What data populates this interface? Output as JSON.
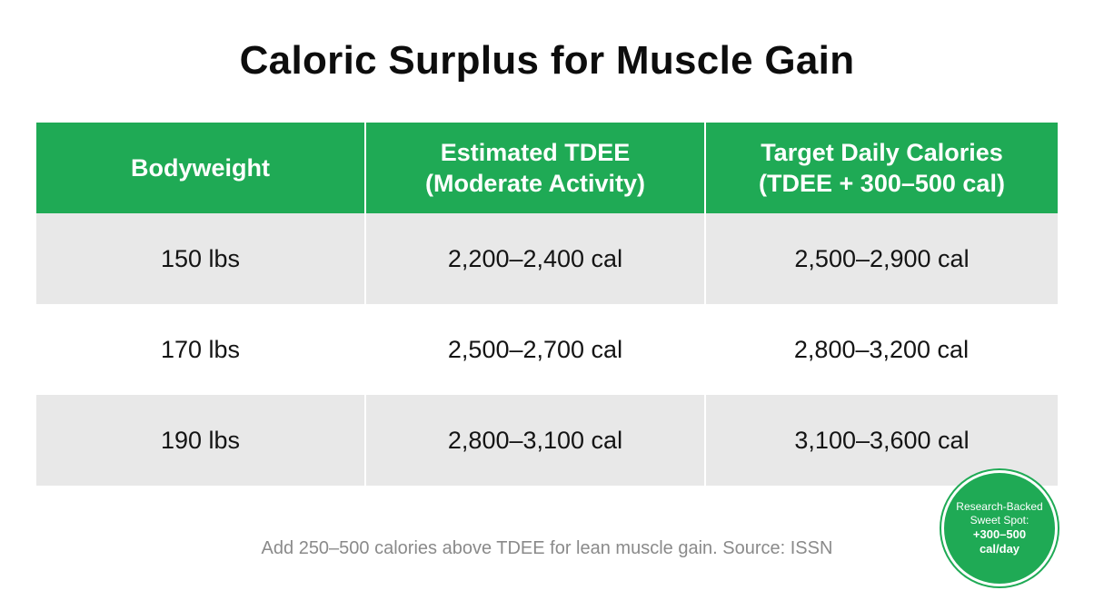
{
  "title": "Caloric Surplus for Muscle Gain",
  "table": {
    "headers": [
      {
        "line1": "Bodyweight",
        "line2": ""
      },
      {
        "line1": "Estimated TDEE",
        "line2": "(Moderate Activity)"
      },
      {
        "line1": "Target Daily Calories",
        "line2": "(TDEE + 300–500 cal)"
      }
    ],
    "rows": [
      {
        "bodyweight": "150 lbs",
        "tdee": "2,200–2,400 cal",
        "target": "2,500–2,900 cal"
      },
      {
        "bodyweight": "170 lbs",
        "tdee": "2,500–2,700 cal",
        "target": "2,800–3,200 cal"
      },
      {
        "bodyweight": "190 lbs",
        "tdee": "2,800–3,100 cal",
        "target": "3,100–3,600 cal"
      }
    ]
  },
  "footnote": "Add 250–500 calories above TDEE for lean muscle gain. Source: ISSN",
  "badge": {
    "line1": "Research-Backed",
    "line2": "Sweet Spot:",
    "value1": "+300–500",
    "value2": "cal/day"
  },
  "colors": {
    "header_green": "#1faa55",
    "row_shade": "#e8e8e8",
    "footnote_gray": "#8a8a8a"
  }
}
